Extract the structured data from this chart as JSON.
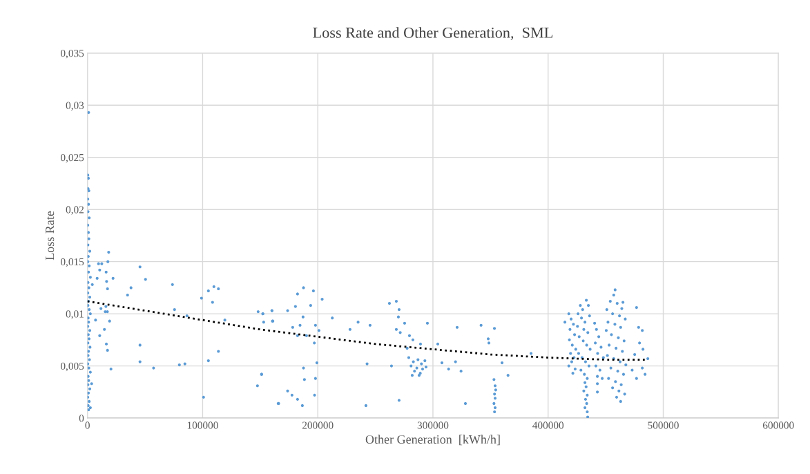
{
  "chart_data": {
    "type": "scatter",
    "title": "Loss Rate and Other Generation,  SML",
    "xlabel": "Other Generation  [kWh/h]",
    "ylabel": "Loss Rate",
    "xlim": [
      0,
      600000
    ],
    "xticks": [
      0,
      100000,
      200000,
      300000,
      400000,
      500000,
      600000
    ],
    "ylim": [
      0,
      0.035
    ],
    "yticks": [
      0,
      {
        "value": 0.005,
        "label": "0,005"
      },
      {
        "value": 0.01,
        "label": "0,01"
      },
      {
        "value": 0.015,
        "label": "0,015"
      },
      {
        "value": 0.02,
        "label": "0,02"
      },
      {
        "value": 0.025,
        "label": "0,025"
      },
      {
        "value": 0.03,
        "label": "0,03"
      },
      {
        "value": 0.035,
        "label": "0,035"
      }
    ],
    "grid": true,
    "legend": false,
    "series": [
      {
        "color": "#5b9bd5",
        "marker": "circle",
        "x": [
          1000,
          300,
          800,
          500,
          1200,
          300,
          900,
          500,
          1500,
          300,
          800,
          1200,
          400,
          2000,
          700,
          300,
          1500,
          900,
          2500,
          500,
          1200,
          300,
          2000,
          800,
          400,
          1500,
          2500,
          600,
          1000,
          300,
          2000,
          700,
          1400,
          400,
          2200,
          900,
          500,
          1700,
          300,
          1200,
          2500,
          600,
          1000,
          400,
          2000,
          800,
          300,
          1500,
          600,
          1000,
          2500,
          18400,
          17700,
          9600,
          12400,
          10600,
          16200,
          45600,
          22200,
          8400,
          50400,
          16600,
          17400,
          37800,
          34800,
          73800,
          4200,
          99000,
          105000,
          109800,
          113700,
          108600,
          11700,
          16000,
          15400,
          17300,
          75600,
          86400,
          7000,
          19200,
          119300,
          14700,
          10600,
          16400,
          17400,
          45600,
          113700,
          45600,
          105000,
          20400,
          57400,
          79800,
          84600,
          3600,
          100800,
          147600,
          151200,
          166000,
          148200,
          152400,
          160200,
          160600,
          153000,
          152200,
          160200,
          161000,
          173800,
          180600,
          182400,
          187600,
          196200,
          203800,
          193800,
          187200,
          178200,
          184600,
          182400,
          190200,
          198000,
          201000,
          197000,
          199200,
          187600,
          188400,
          198000,
          197200,
          173800,
          177600,
          182400,
          186600,
          165600,
          151200,
          212600,
          228000,
          235000,
          245400,
          242800,
          241800,
          262200,
          268200,
          270600,
          270000,
          268200,
          271600,
          275400,
          279600,
          282600,
          289200,
          277600,
          295200,
          264000,
          270600,
          279000,
          281000,
          283000,
          284000,
          286000,
          287000,
          289000,
          290000,
          291000,
          293000,
          294000,
          282000,
          288000,
          304200,
          307800,
          313600,
          319600,
          321000,
          324400,
          328200,
          341800,
          348000,
          348600,
          353400,
          360000,
          365200,
          353000,
          354000,
          354500,
          353500,
          354000,
          353000,
          354000,
          353500,
          385200,
          418000,
          420000,
          422000,
          419000,
          423000,
          418500,
          421000,
          424000,
          419500,
          422500,
          420500,
          418000,
          423500,
          421500,
          414600,
          428000,
          430000,
          433200,
          435000,
          426000,
          429000,
          432000,
          436000,
          425500,
          431000,
          434500,
          427000,
          430500,
          433500,
          436500,
          426500,
          429500,
          432500,
          435500,
          428500,
          431500,
          434000,
          432000,
          433000,
          431000,
          434000,
          432500,
          433500,
          432000,
          434000,
          434400,
          440400,
          442000,
          444000,
          441000,
          446000,
          443000,
          448000,
          441500,
          445000,
          442800,
          442800,
          442800,
          447000,
          458200,
          457000,
          465000,
          454000,
          460000,
          464000,
          451000,
          456000,
          462000,
          467000,
          452000,
          458000,
          463000,
          450500,
          455000,
          461000,
          466000,
          453000,
          459000,
          464500,
          451500,
          457000,
          462500,
          467500,
          454500,
          460500,
          465500,
          452500,
          458500,
          463500,
          456000,
          461500,
          466500,
          459500,
          463000,
          476800,
          478600,
          481800,
          479400,
          482400,
          486600,
          484200,
          476800,
          473000,
          481800,
          475200
        ],
        "values": [
          0.0293,
          0.0233,
          0.023,
          0.022,
          0.0218,
          0.021,
          0.0205,
          0.0198,
          0.0192,
          0.0185,
          0.0178,
          0.0172,
          0.0166,
          0.016,
          0.0155,
          0.015,
          0.0146,
          0.014,
          0.0135,
          0.013,
          0.0125,
          0.012,
          0.0116,
          0.0112,
          0.0108,
          0.0104,
          0.01,
          0.0096,
          0.0092,
          0.0088,
          0.0084,
          0.008,
          0.0076,
          0.0072,
          0.0068,
          0.0064,
          0.006,
          0.0056,
          0.0052,
          0.0048,
          0.0044,
          0.004,
          0.0036,
          0.0032,
          0.0028,
          0.0024,
          0.002,
          0.0016,
          0.0012,
          0.0008,
          0.001,
          0.0159,
          0.015,
          0.0148,
          0.0148,
          0.0142,
          0.014,
          0.0145,
          0.0134,
          0.0134,
          0.0133,
          0.0131,
          0.0124,
          0.0125,
          0.0118,
          0.0128,
          0.0128,
          0.0115,
          0.0122,
          0.0126,
          0.0124,
          0.0111,
          0.0105,
          0.0107,
          0.0102,
          0.0102,
          0.0104,
          0.0098,
          0.0094,
          0.0093,
          0.0094,
          0.0085,
          0.0079,
          0.0071,
          0.0065,
          0.007,
          0.0064,
          0.0054,
          0.0055,
          0.0047,
          0.0048,
          0.0051,
          0.0052,
          0.0033,
          0.002,
          0.0031,
          0.0042,
          0.0014,
          0.0102,
          0.01,
          0.0103,
          0.0093,
          0.0092,
          0.01,
          0.0103,
          0.0093,
          0.0103,
          0.0107,
          0.0119,
          0.0125,
          0.0122,
          0.0114,
          0.0108,
          0.0097,
          0.0087,
          0.0089,
          0.0079,
          0.0079,
          0.0089,
          0.0084,
          0.0072,
          0.0053,
          0.0048,
          0.0037,
          0.0038,
          0.0022,
          0.0026,
          0.0022,
          0.0018,
          0.0012,
          0.0014,
          0.0042,
          0.0096,
          0.0085,
          0.0092,
          0.0089,
          0.0052,
          0.0012,
          0.011,
          0.0112,
          0.0104,
          0.0097,
          0.0085,
          0.0082,
          0.0091,
          0.0079,
          0.0075,
          0.0071,
          0.0067,
          0.0091,
          0.005,
          0.0017,
          0.0058,
          0.005,
          0.0054,
          0.0045,
          0.0048,
          0.0056,
          0.0043,
          0.0052,
          0.0047,
          0.0055,
          0.0049,
          0.0041,
          0.0041,
          0.0071,
          0.0053,
          0.0047,
          0.0054,
          0.0087,
          0.0045,
          0.0014,
          0.0089,
          0.0076,
          0.0072,
          0.0086,
          0.0053,
          0.0041,
          0.0037,
          0.0031,
          0.0027,
          0.0023,
          0.0019,
          0.0014,
          0.001,
          0.0006,
          0.0062,
          0.01,
          0.0095,
          0.009,
          0.0085,
          0.008,
          0.0075,
          0.007,
          0.0066,
          0.0062,
          0.0058,
          0.0054,
          0.005,
          0.0047,
          0.0043,
          0.0092,
          0.0108,
          0.0104,
          0.0113,
          0.0108,
          0.01,
          0.0096,
          0.0092,
          0.0098,
          0.0088,
          0.0085,
          0.0082,
          0.0078,
          0.0074,
          0.007,
          0.0066,
          0.0062,
          0.0058,
          0.0054,
          0.005,
          0.0046,
          0.0042,
          0.0038,
          0.0034,
          0.003,
          0.0026,
          0.0022,
          0.0018,
          0.0014,
          0.001,
          0.0006,
          0.0001,
          0.0091,
          0.0085,
          0.0078,
          0.0072,
          0.0068,
          0.0062,
          0.0058,
          0.005,
          0.0046,
          0.004,
          0.0033,
          0.0025,
          0.0038,
          0.0123,
          0.0118,
          0.0111,
          0.0112,
          0.011,
          0.0105,
          0.0104,
          0.01,
          0.0098,
          0.0095,
          0.0092,
          0.009,
          0.0087,
          0.0084,
          0.008,
          0.0077,
          0.0074,
          0.007,
          0.0067,
          0.0064,
          0.006,
          0.0057,
          0.0054,
          0.0051,
          0.0048,
          0.0045,
          0.0042,
          0.0038,
          0.0035,
          0.0032,
          0.0029,
          0.0026,
          0.0023,
          0.002,
          0.0016,
          0.0106,
          0.0087,
          0.0084,
          0.0072,
          0.0066,
          0.0057,
          0.0042,
          0.0038,
          0.0046,
          0.0048,
          0.0061
        ]
      },
      {
        "type": "line",
        "color": "#000000",
        "marker": "none",
        "line_style": "dotted",
        "x": [
          0,
          50000,
          100000,
          150000,
          200000,
          250000,
          300000,
          350000,
          400000,
          450000,
          486000
        ],
        "values": [
          0.0112,
          0.0103,
          0.0094,
          0.0085,
          0.0078,
          0.0071,
          0.0066,
          0.0061,
          0.0058,
          0.0056,
          0.0056
        ]
      }
    ]
  }
}
